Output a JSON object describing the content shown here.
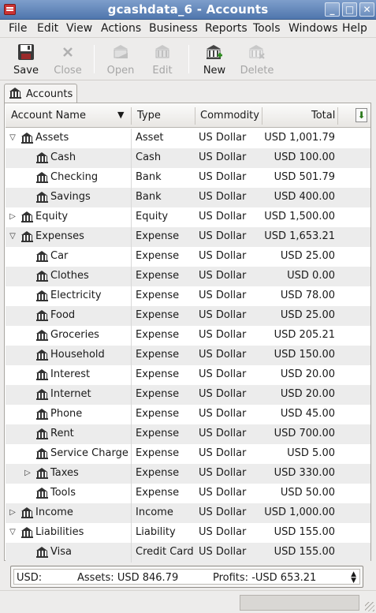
{
  "window": {
    "title": "gcashdata_6 - Accounts",
    "buttons": [
      "_",
      "□",
      "✕"
    ]
  },
  "menu": [
    "File",
    "Edit",
    "View",
    "Actions",
    "Business",
    "Reports",
    "Tools",
    "Windows",
    "Help"
  ],
  "toolbar": {
    "save": "Save",
    "close": "Close",
    "open": "Open",
    "edit": "Edit",
    "new": "New",
    "delete": "Delete"
  },
  "tab": {
    "label": "Accounts"
  },
  "columns": {
    "name": "Account Name",
    "type": "Type",
    "commodity": "Commodity",
    "total": "Total"
  },
  "accounts": [
    {
      "name": "Assets",
      "type": "Asset",
      "commodity": "US Dollar",
      "total": "USD 1,001.79",
      "depth": 0,
      "expander": "expanded"
    },
    {
      "name": "Cash",
      "type": "Cash",
      "commodity": "US Dollar",
      "total": "USD 100.00",
      "depth": 1,
      "expander": "none"
    },
    {
      "name": "Checking",
      "type": "Bank",
      "commodity": "US Dollar",
      "total": "USD 501.79",
      "depth": 1,
      "expander": "none"
    },
    {
      "name": "Savings",
      "type": "Bank",
      "commodity": "US Dollar",
      "total": "USD 400.00",
      "depth": 1,
      "expander": "none"
    },
    {
      "name": "Equity",
      "type": "Equity",
      "commodity": "US Dollar",
      "total": "USD 1,500.00",
      "depth": 0,
      "expander": "collapsed"
    },
    {
      "name": "Expenses",
      "type": "Expense",
      "commodity": "US Dollar",
      "total": "USD 1,653.21",
      "depth": 0,
      "expander": "expanded"
    },
    {
      "name": "Car",
      "type": "Expense",
      "commodity": "US Dollar",
      "total": "USD 25.00",
      "depth": 1,
      "expander": "none"
    },
    {
      "name": "Clothes",
      "type": "Expense",
      "commodity": "US Dollar",
      "total": "USD 0.00",
      "depth": 1,
      "expander": "none"
    },
    {
      "name": "Electricity",
      "type": "Expense",
      "commodity": "US Dollar",
      "total": "USD 78.00",
      "depth": 1,
      "expander": "none"
    },
    {
      "name": "Food",
      "type": "Expense",
      "commodity": "US Dollar",
      "total": "USD 25.00",
      "depth": 1,
      "expander": "none"
    },
    {
      "name": "Groceries",
      "type": "Expense",
      "commodity": "US Dollar",
      "total": "USD 205.21",
      "depth": 1,
      "expander": "none"
    },
    {
      "name": "Household",
      "type": "Expense",
      "commodity": "US Dollar",
      "total": "USD 150.00",
      "depth": 1,
      "expander": "none"
    },
    {
      "name": "Interest",
      "type": "Expense",
      "commodity": "US Dollar",
      "total": "USD 20.00",
      "depth": 1,
      "expander": "none"
    },
    {
      "name": "Internet",
      "type": "Expense",
      "commodity": "US Dollar",
      "total": "USD 20.00",
      "depth": 1,
      "expander": "none"
    },
    {
      "name": "Phone",
      "type": "Expense",
      "commodity": "US Dollar",
      "total": "USD 45.00",
      "depth": 1,
      "expander": "none"
    },
    {
      "name": "Rent",
      "type": "Expense",
      "commodity": "US Dollar",
      "total": "USD 700.00",
      "depth": 1,
      "expander": "none"
    },
    {
      "name": "Service Charge",
      "type": "Expense",
      "commodity": "US Dollar",
      "total": "USD 5.00",
      "depth": 1,
      "expander": "none"
    },
    {
      "name": "Taxes",
      "type": "Expense",
      "commodity": "US Dollar",
      "total": "USD 330.00",
      "depth": 1,
      "expander": "collapsed"
    },
    {
      "name": "Tools",
      "type": "Expense",
      "commodity": "US Dollar",
      "total": "USD 50.00",
      "depth": 1,
      "expander": "none"
    },
    {
      "name": "Income",
      "type": "Income",
      "commodity": "US Dollar",
      "total": "USD 1,000.00",
      "depth": 0,
      "expander": "collapsed"
    },
    {
      "name": "Liabilities",
      "type": "Liability",
      "commodity": "US Dollar",
      "total": "USD 155.00",
      "depth": 0,
      "expander": "expanded"
    },
    {
      "name": "Visa",
      "type": "Credit Card",
      "commodity": "US Dollar",
      "total": "USD 155.00",
      "depth": 1,
      "expander": "none"
    }
  ],
  "summary": {
    "currency": "USD:",
    "assets": "Assets: USD 846.79",
    "profits": "Profits: -USD 653.21"
  },
  "colors": {
    "titlebar": "#4f76ad",
    "row_alt": "#ececec",
    "sort_arrow": "#2d7a1e"
  }
}
